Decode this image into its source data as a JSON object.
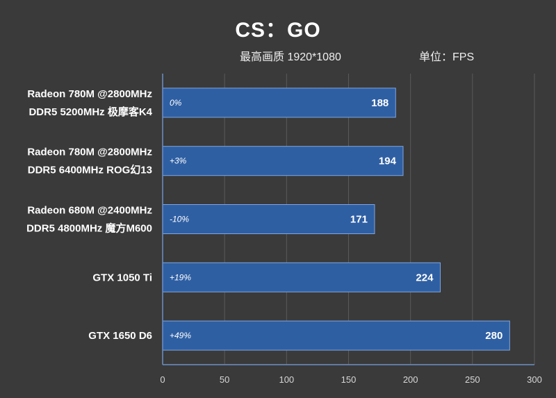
{
  "chart_data": {
    "type": "bar",
    "orientation": "horizontal",
    "title": "CS：GO",
    "subtitle_left": "最高画质 1920*1080",
    "subtitle_right": "单位：FPS",
    "categories": [
      [
        "Radeon 780M @2800MHz",
        "DDR5 5200MHz 极摩客K4"
      ],
      [
        "Radeon 780M @2800MHz",
        "DDR5 6400MHz ROG幻13"
      ],
      [
        "Radeon 680M @2400MHz",
        "DDR5 4800MHz 魔方M600"
      ],
      [
        "GTX 1050 Ti"
      ],
      [
        "GTX 1650 D6"
      ]
    ],
    "values": [
      188,
      194,
      171,
      224,
      280
    ],
    "percent_labels": [
      "0%",
      "+3%",
      "-10%",
      "+19%",
      "+49%"
    ],
    "xlim": [
      0,
      300
    ],
    "xticks": [
      0,
      50,
      100,
      150,
      200,
      250,
      300
    ],
    "grid": true,
    "colors": {
      "background": "#3a3a3a",
      "bar_fill": "#2f5fa3",
      "bar_stroke": "#7fa6e0",
      "grid": "#5a5a5a",
      "axis": "#6d8fc4"
    }
  }
}
